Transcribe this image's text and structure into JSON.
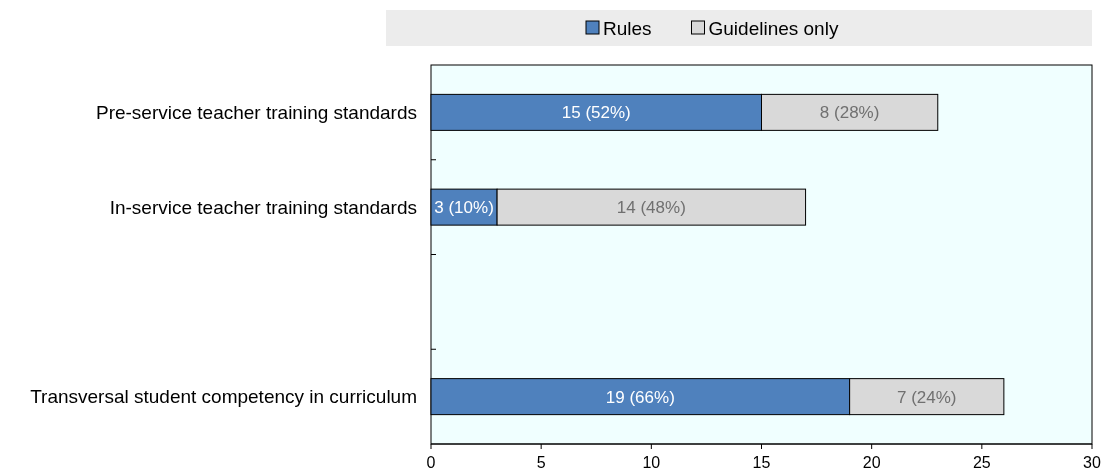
{
  "chart_data": {
    "type": "bar",
    "orientation": "horizontal",
    "stacked": true,
    "legend": "top",
    "grid": false,
    "categories": [
      "Pre-service teacher training standards",
      "In-service teacher training standards",
      null,
      "Transversal student competency in curriculum"
    ],
    "series": [
      {
        "name": "Rules",
        "color": "#4f81bd",
        "values": [
          15,
          3,
          null,
          19
        ],
        "value_labels": [
          "15 (52%)",
          "3 (10%)",
          null,
          "19 (66%)"
        ]
      },
      {
        "name": "Guidelines only",
        "color": "#d9d9d9",
        "values": [
          8,
          14,
          null,
          7
        ],
        "value_labels": [
          "8 (28%)",
          "14 (48%)",
          null,
          "7 (24%)"
        ]
      }
    ],
    "xlim": [
      0,
      30
    ],
    "xticks": [
      0,
      5,
      10,
      15,
      20,
      25,
      30
    ]
  }
}
